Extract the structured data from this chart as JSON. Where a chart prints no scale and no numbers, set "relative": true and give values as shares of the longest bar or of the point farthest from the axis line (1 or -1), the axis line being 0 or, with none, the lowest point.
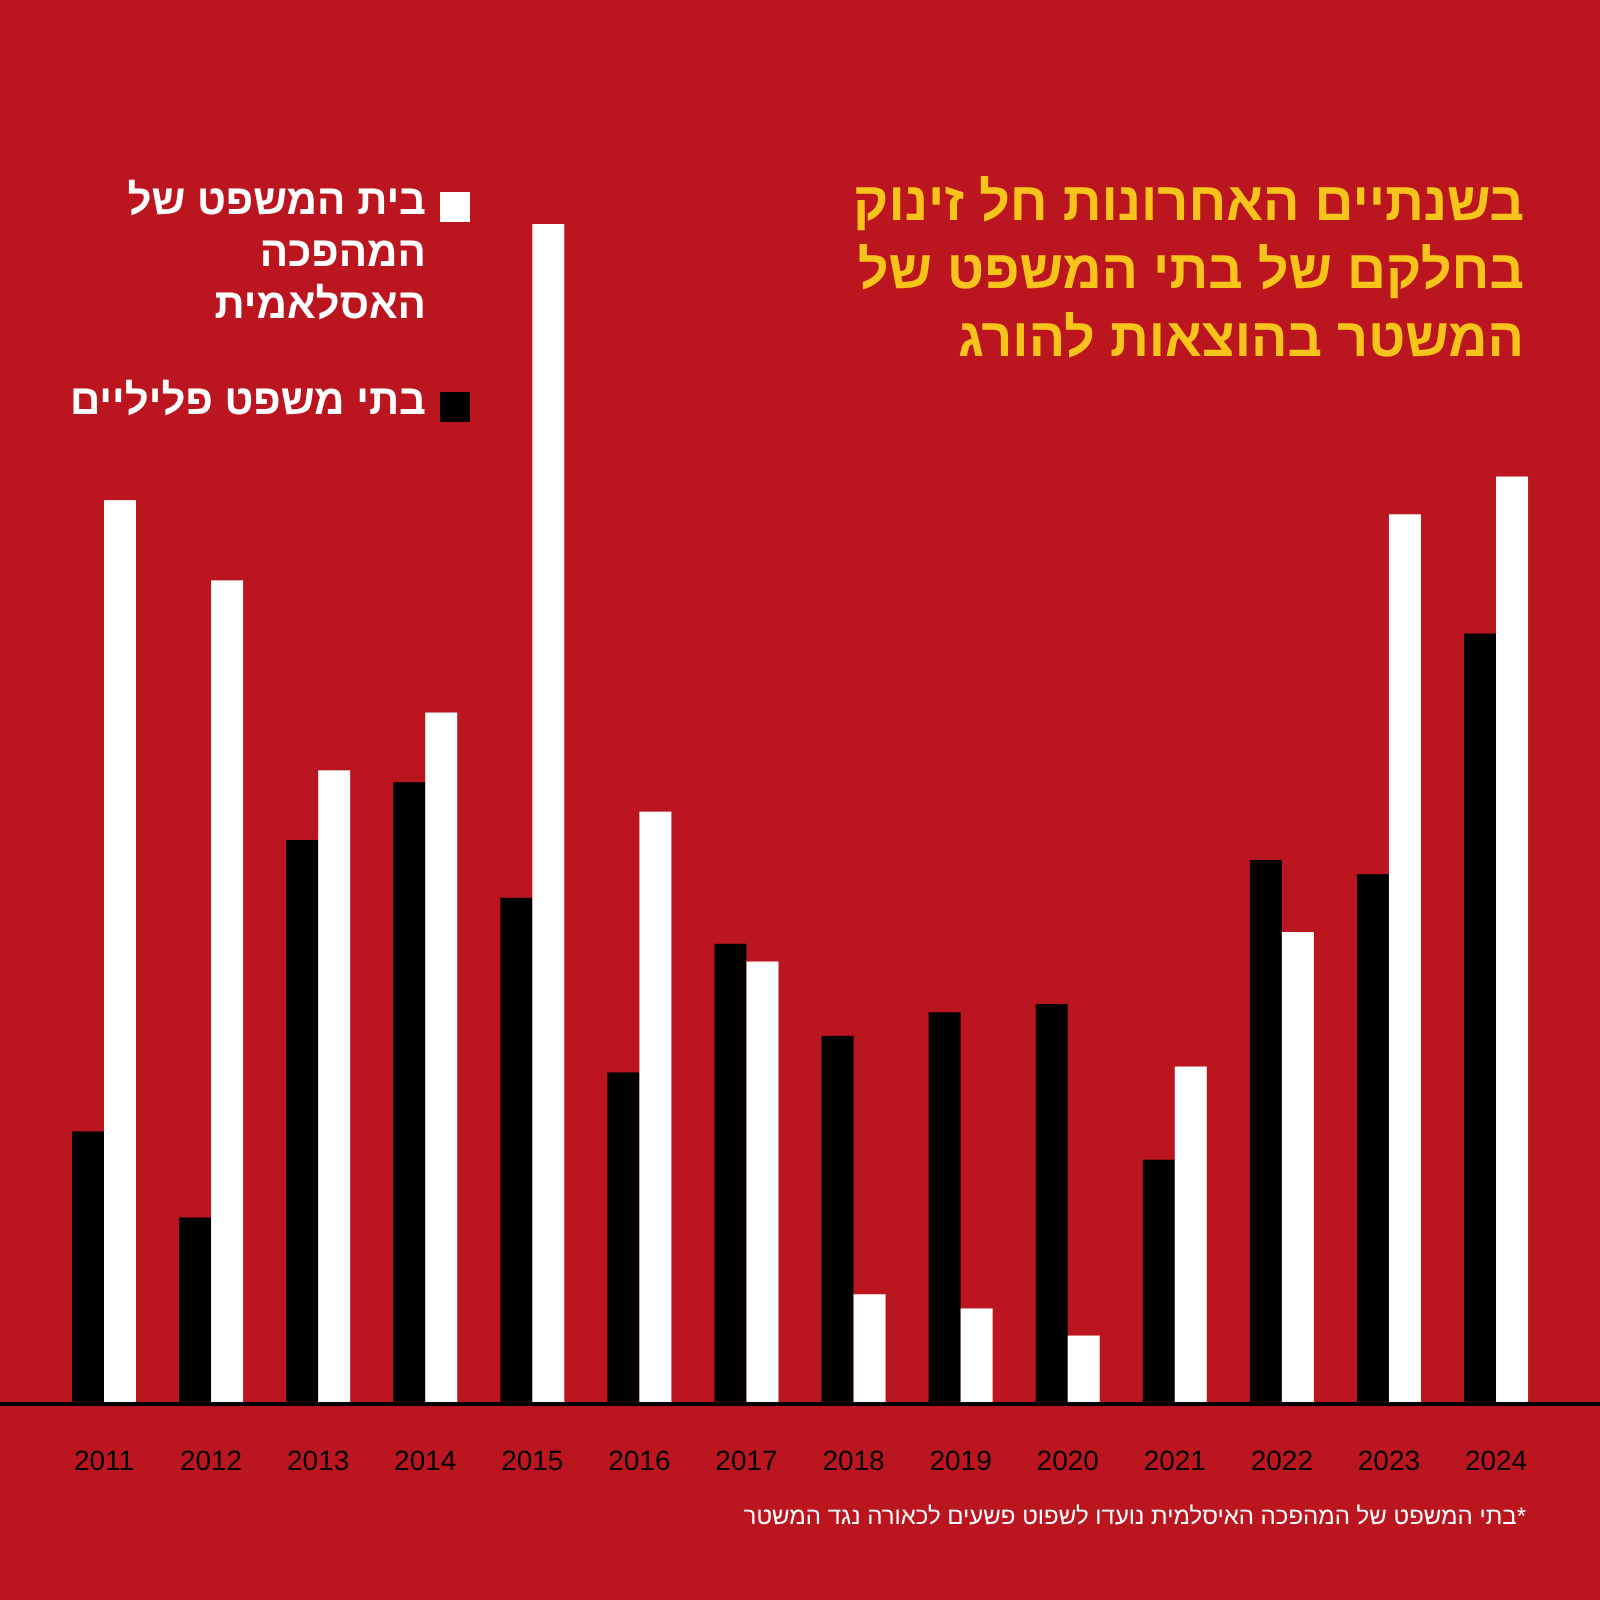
{
  "chart_data": {
    "type": "bar",
    "relative": true,
    "title": "בשנתיים האחרונות חל זינוק בחלקם של בתי המשפט של המשטר בהוצאות להורג",
    "categories": [
      "2011",
      "2012",
      "2013",
      "2014",
      "2015",
      "2016",
      "2017",
      "2018",
      "2019",
      "2020",
      "2021",
      "2022",
      "2023",
      "2024"
    ],
    "series": [
      {
        "name": "בתי משפט פליליים",
        "color": "#000000",
        "values": [
          0.231,
          0.158,
          0.478,
          0.527,
          0.429,
          0.281,
          0.39,
          0.312,
          0.332,
          0.339,
          0.207,
          0.461,
          0.449,
          0.653
        ]
      },
      {
        "name": "בית המשפט של המהפכה האסלאמית",
        "color": "#ffffff",
        "values": [
          0.766,
          0.698,
          0.537,
          0.586,
          1,
          0.502,
          0.375,
          0.093,
          0.081,
          0.058,
          0.286,
          0.4,
          0.754,
          0.786
        ]
      }
    ],
    "legend": "top left",
    "annotations": [
      "*בתי המשפט של המהפכה האיסלמית נועדו לשפוט פשעים לכאורה נגד המשטר"
    ]
  }
}
